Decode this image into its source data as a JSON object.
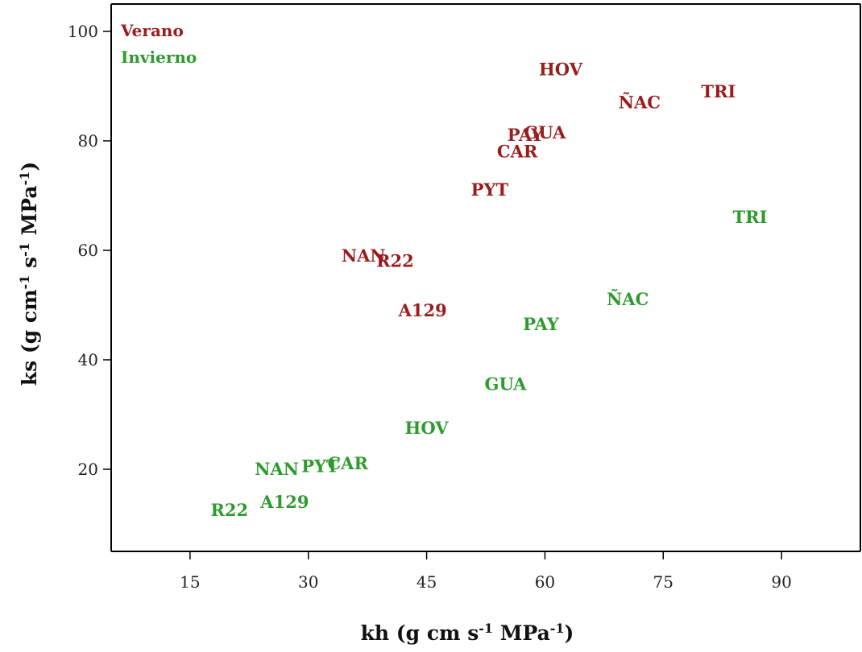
{
  "chart_data": {
    "type": "scatter",
    "xlabel": "kh (g cm s⁻¹ MPa⁻¹)",
    "ylabel": "ks (g cm⁻¹ s⁻¹ MPa⁻¹)",
    "xlim": [
      5,
      100
    ],
    "ylim": [
      5,
      105
    ],
    "xticks": [
      15,
      30,
      45,
      60,
      75,
      90
    ],
    "yticks": [
      20,
      40,
      60,
      80,
      100
    ],
    "grid": false,
    "legend_placement": "top-left",
    "series": [
      {
        "name": "Verano",
        "color": "#9b1c1c",
        "points": [
          {
            "label": "HOV",
            "x": 62,
            "y": 93
          },
          {
            "label": "ÑAC",
            "x": 72,
            "y": 87
          },
          {
            "label": "TRI",
            "x": 82,
            "y": 89
          },
          {
            "label": "PAY",
            "x": 57.5,
            "y": 81
          },
          {
            "label": "GUA",
            "x": 60,
            "y": 81.5
          },
          {
            "label": "CAR",
            "x": 56.5,
            "y": 78
          },
          {
            "label": "PYT",
            "x": 53,
            "y": 71
          },
          {
            "label": "NAN",
            "x": 37,
            "y": 59
          },
          {
            "label": "R22",
            "x": 41,
            "y": 58
          },
          {
            "label": "A129",
            "x": 44.5,
            "y": 49
          }
        ]
      },
      {
        "name": "Invierno",
        "color": "#2e9b2e",
        "points": [
          {
            "label": "TRI",
            "x": 86,
            "y": 66
          },
          {
            "label": "ÑAC",
            "x": 70.5,
            "y": 51
          },
          {
            "label": "PAY",
            "x": 59.5,
            "y": 46.5
          },
          {
            "label": "GUA",
            "x": 55,
            "y": 35.5
          },
          {
            "label": "HOV",
            "x": 45,
            "y": 27.5
          },
          {
            "label": "CAR",
            "x": 35,
            "y": 21
          },
          {
            "label": "PYT",
            "x": 31.5,
            "y": 20.5
          },
          {
            "label": "NAN",
            "x": 26,
            "y": 20
          },
          {
            "label": "A129",
            "x": 27,
            "y": 14
          },
          {
            "label": "R22",
            "x": 20,
            "y": 12.5
          }
        ]
      }
    ]
  }
}
